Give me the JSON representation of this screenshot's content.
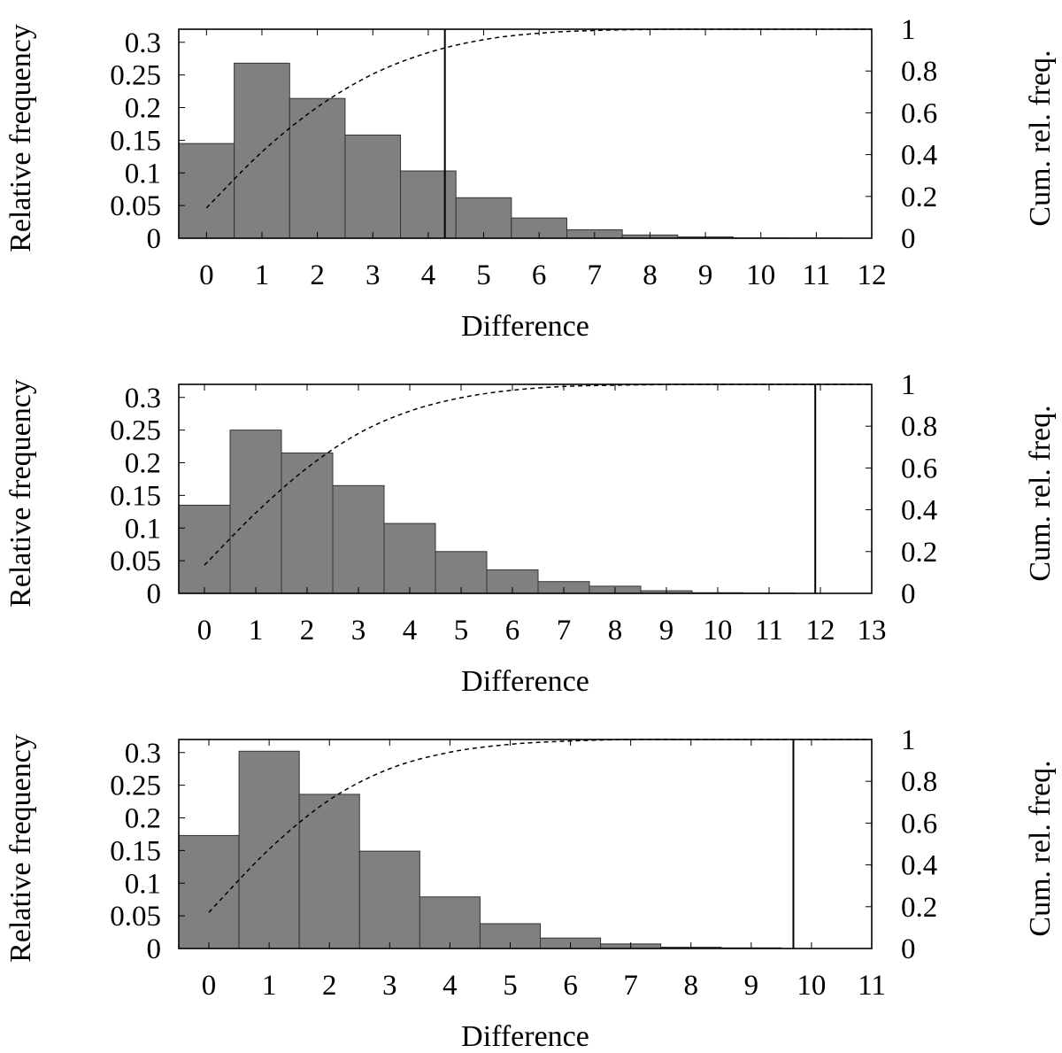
{
  "colors": {
    "bar_fill": "#808080",
    "bar_stroke": "#333333",
    "axis": "#000000",
    "curve": "#000000"
  },
  "chart_data": [
    {
      "type": "bar",
      "xlabel": "Difference",
      "ylabel": "Relative frequency",
      "y2label": "Cum. rel. freq.",
      "x_ticks": [
        "0",
        "1",
        "2",
        "3",
        "4",
        "5",
        "6",
        "7",
        "8",
        "9",
        "10",
        "11",
        "12"
      ],
      "y_ticks": [
        "0",
        "0.05",
        "0.1",
        "0.15",
        "0.2",
        "0.25",
        "0.3"
      ],
      "y2_ticks": [
        "0",
        "0.2",
        "0.4",
        "0.6",
        "0.8",
        "1"
      ],
      "xlim": [
        -0.5,
        12
      ],
      "ylim": [
        0,
        0.32
      ],
      "y2lim": [
        0,
        1
      ],
      "categories": [
        0,
        1,
        2,
        3,
        4,
        5,
        6,
        7,
        8,
        9,
        10,
        11
      ],
      "values": [
        0.145,
        0.268,
        0.214,
        0.158,
        0.103,
        0.062,
        0.031,
        0.013,
        0.005,
        0.002,
        0.0005,
        0.0002
      ],
      "cumulative": [
        0.145,
        0.413,
        0.627,
        0.785,
        0.888,
        0.95,
        0.981,
        0.994,
        0.999,
        1.0,
        1.0,
        1.0,
        1.0
      ],
      "vertical_line": 4.3
    },
    {
      "type": "bar",
      "xlabel": "Difference",
      "ylabel": "Relative frequency",
      "y2label": "Cum. rel. freq.",
      "x_ticks": [
        "0",
        "1",
        "2",
        "3",
        "4",
        "5",
        "6",
        "7",
        "8",
        "9",
        "10",
        "11",
        "12",
        "13"
      ],
      "y_ticks": [
        "0",
        "0.05",
        "0.1",
        "0.15",
        "0.2",
        "0.25",
        "0.3"
      ],
      "y2_ticks": [
        "0",
        "0.2",
        "0.4",
        "0.6",
        "0.8",
        "1"
      ],
      "xlim": [
        -0.5,
        13
      ],
      "ylim": [
        0,
        0.32
      ],
      "y2lim": [
        0,
        1
      ],
      "categories": [
        0,
        1,
        2,
        3,
        4,
        5,
        6,
        7,
        8,
        9,
        10,
        11
      ],
      "values": [
        0.135,
        0.25,
        0.215,
        0.165,
        0.107,
        0.064,
        0.036,
        0.018,
        0.011,
        0.004,
        0.001,
        0.0005
      ],
      "cumulative": [
        0.135,
        0.385,
        0.6,
        0.765,
        0.872,
        0.936,
        0.972,
        0.99,
        0.996,
        0.999,
        1.0,
        1.0,
        1.0,
        1.0
      ],
      "vertical_line": 11.9
    },
    {
      "type": "bar",
      "xlabel": "Difference",
      "ylabel": "Relative frequency",
      "y2label": "Cum. rel. freq.",
      "x_ticks": [
        "0",
        "1",
        "2",
        "3",
        "4",
        "5",
        "6",
        "7",
        "8",
        "9",
        "10",
        "11"
      ],
      "y_ticks": [
        "0",
        "0.05",
        "0.1",
        "0.15",
        "0.2",
        "0.25",
        "0.3"
      ],
      "y2_ticks": [
        "0",
        "0.2",
        "0.4",
        "0.6",
        "0.8",
        "1"
      ],
      "xlim": [
        -0.5,
        11
      ],
      "ylim": [
        0,
        0.32
      ],
      "y2lim": [
        0,
        1
      ],
      "categories": [
        0,
        1,
        2,
        3,
        4,
        5,
        6,
        7,
        8,
        9
      ],
      "values": [
        0.173,
        0.302,
        0.236,
        0.149,
        0.079,
        0.038,
        0.016,
        0.007,
        0.002,
        0.001
      ],
      "cumulative": [
        0.173,
        0.475,
        0.711,
        0.86,
        0.939,
        0.977,
        0.993,
        1.0,
        1.0,
        1.0,
        1.0,
        1.0
      ],
      "vertical_line": 9.7
    }
  ]
}
